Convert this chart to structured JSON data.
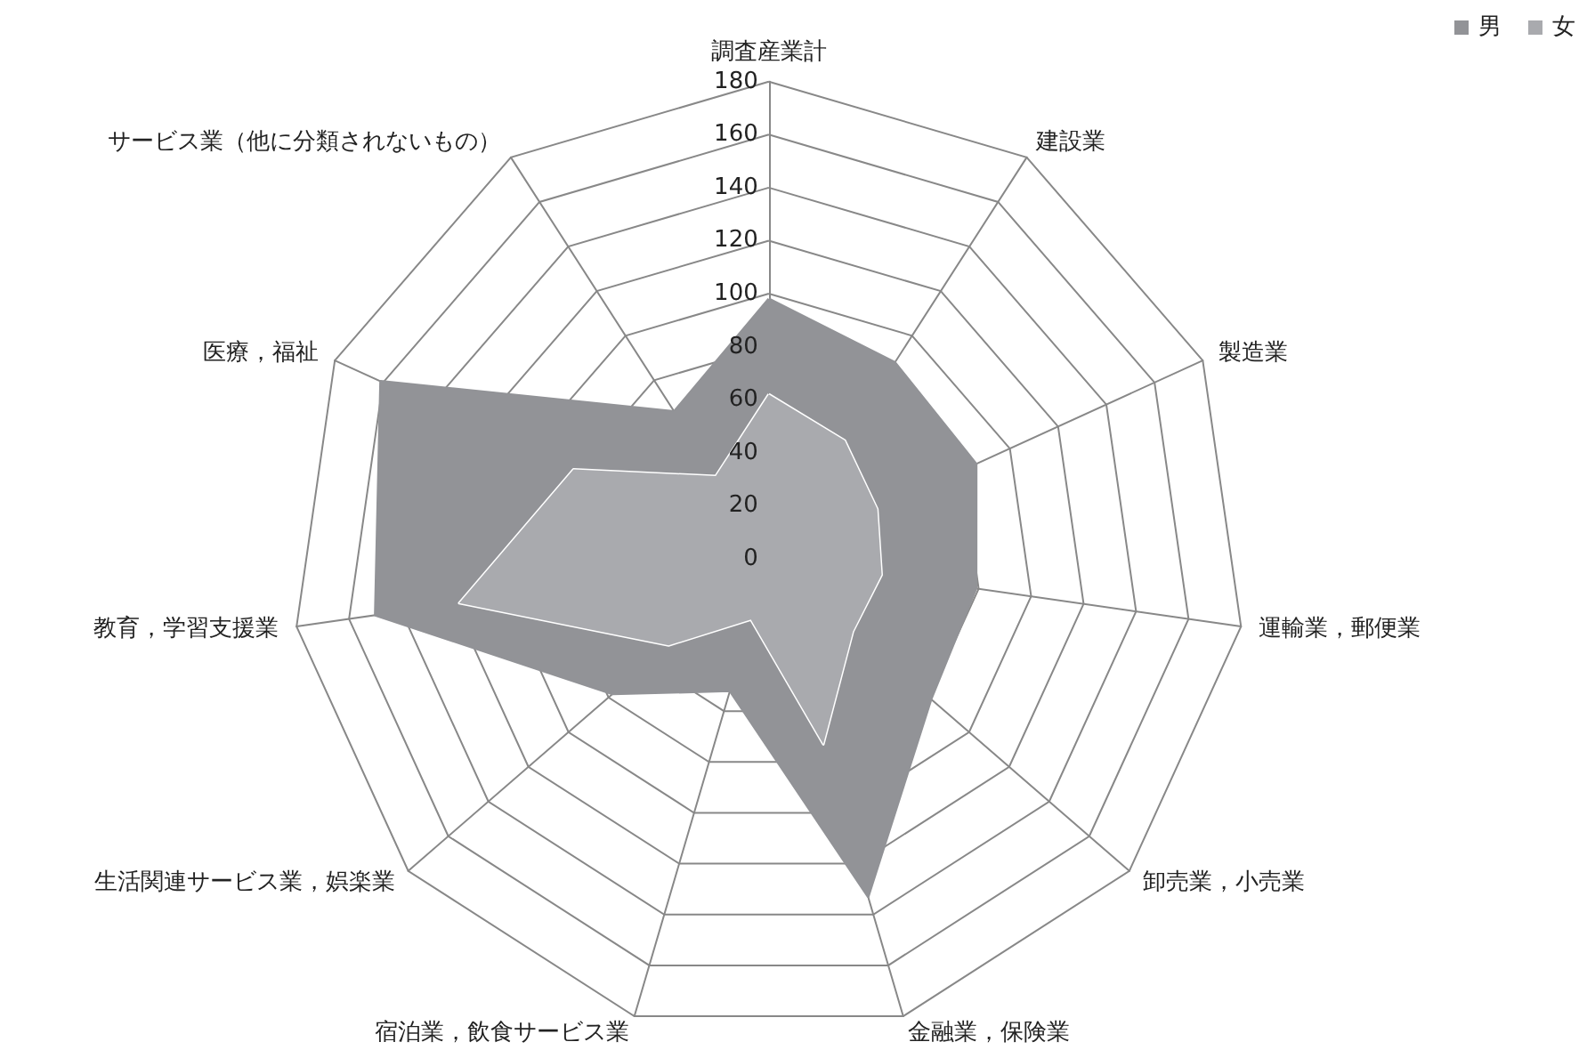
{
  "chart_data": {
    "type": "radar",
    "categories": [
      "調査産業計",
      "建設業",
      "製造業",
      "運輸業，郵便業",
      "卸売業，小売業",
      "金融業，保険業",
      "宿泊業，飲食サービス業",
      "生活関連サービス業，娯楽業",
      "教育，学習支援業",
      "医療，福祉",
      "サービス業（他に分類されないもの）"
    ],
    "series": [
      {
        "name": "男",
        "color": "#929397",
        "values": [
          98,
          88,
          86,
          79,
          81,
          133,
          52,
          78,
          150,
          161,
          66
        ]
      },
      {
        "name": "女",
        "color": "#a9aaae",
        "values": [
          62,
          53,
          45,
          43,
          42,
          73,
          24,
          50,
          118,
          81,
          37
        ]
      }
    ],
    "ylim": [
      0,
      180
    ],
    "yticks": [
      0,
      20,
      40,
      60,
      80,
      100,
      120,
      140,
      160,
      180
    ],
    "legend": "top right",
    "grid": true,
    "marker": "none"
  }
}
